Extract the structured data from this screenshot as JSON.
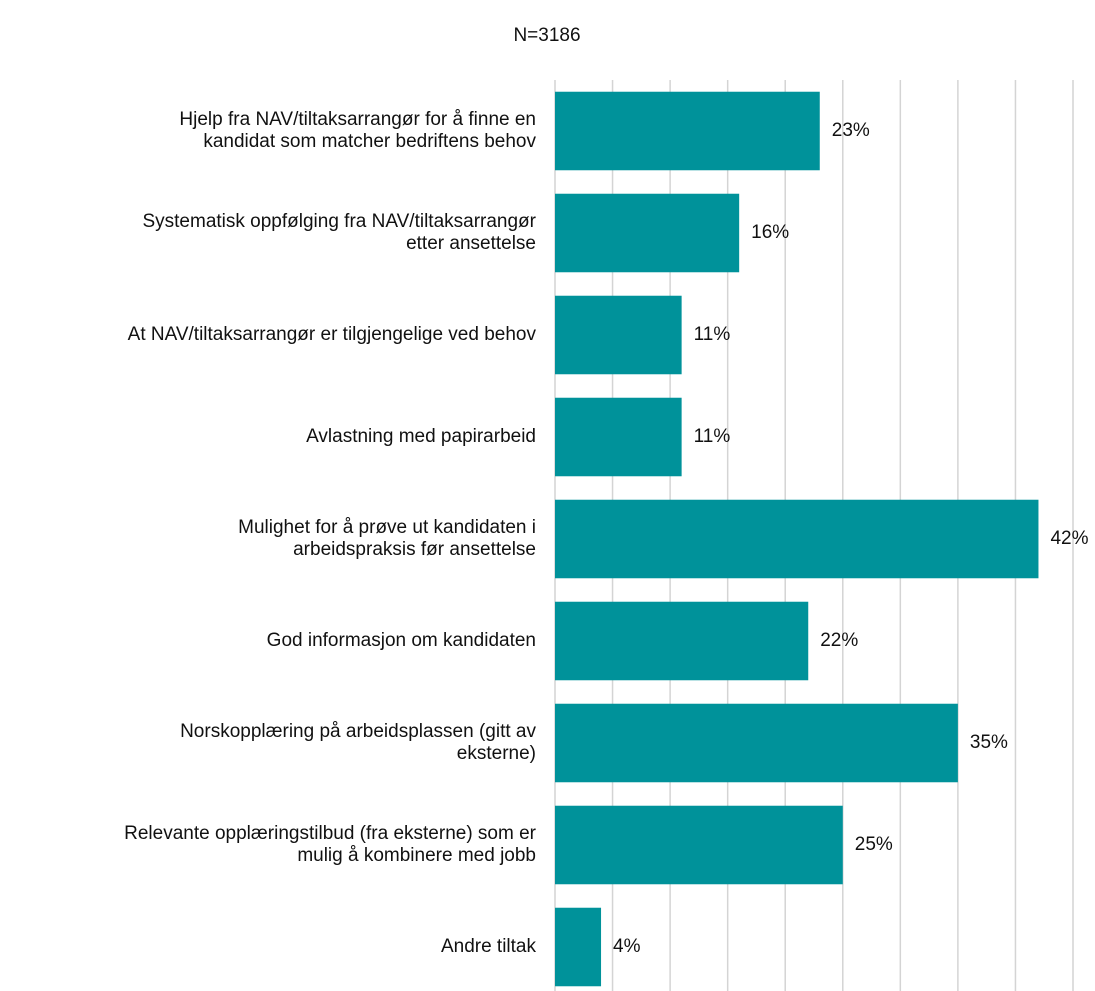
{
  "chart_data": {
    "type": "barh",
    "title": "N=3186",
    "categories": [
      "Hjelp fra NAV/tiltaksarrangør for å finne en\nkandidat som matcher bedriftens behov",
      "Systematisk oppfølging fra NAV/tiltaksarrangør\netter ansettelse",
      "At NAV/tiltaksarrangør er tilgjengelige ved behov",
      "Avlastning med papirarbeid",
      "Mulighet for å prøve ut kandidaten i\narbeidspraksis før ansettelse",
      "God informasjon om kandidaten",
      "Norskopplæring på arbeidsplassen (gitt av\neksterne)",
      "Relevante opplæringstilbud (fra eksterne) som er\nmulig å kombinere med jobb",
      "Andre tiltak"
    ],
    "values": [
      23,
      16,
      11,
      11,
      42,
      22,
      35,
      25,
      4
    ],
    "value_labels": [
      "23%",
      "16%",
      "11%",
      "11%",
      "42%",
      "22%",
      "35%",
      "25%",
      "4%"
    ],
    "color": "#00929a",
    "xlim": [
      0,
      45
    ],
    "xticks": [
      0,
      5,
      10,
      15,
      20,
      25,
      30,
      35,
      40,
      45
    ],
    "grid": true
  }
}
